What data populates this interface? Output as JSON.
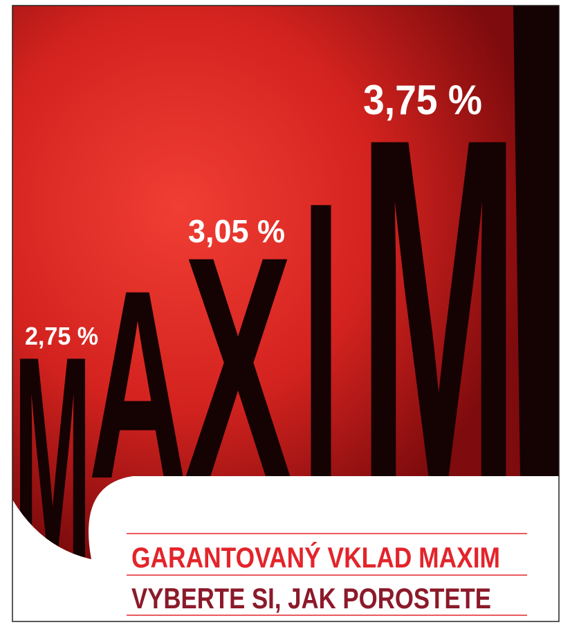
{
  "rates": [
    "2,75 %",
    "3,05 %",
    "3,75 %"
  ],
  "wordmark": [
    "M",
    "A",
    "X",
    "I",
    "M"
  ],
  "headline": "GARANTOVANÝ VKLAD MAXIM",
  "tagline": "VYBERTE SI, JAK POROSTETE"
}
